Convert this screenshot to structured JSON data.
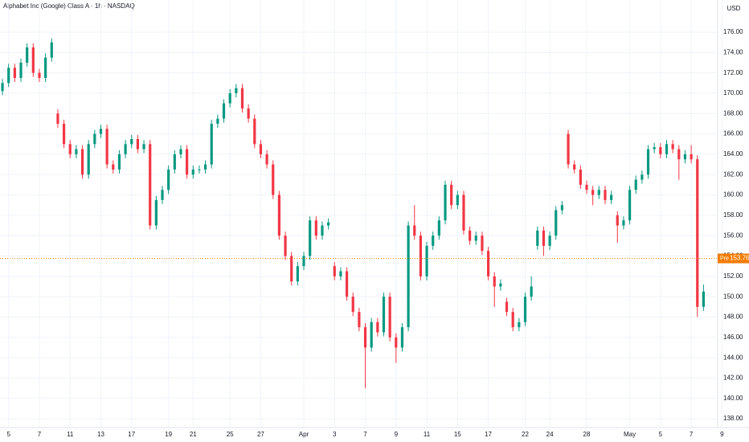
{
  "chart_data": {
    "type": "candlestick",
    "title": "Alphabet Inc (Google) Class A · 1h · NASDAQ",
    "currency": "USD",
    "up_color": "#089981",
    "down_color": "#f23645",
    "last_price": {
      "value": 153.76,
      "label": "153.76",
      "tag": "Pre",
      "color": "#f57c00"
    },
    "xlim": [
      -0.4,
      116.3
    ],
    "ylim": [
      137.14,
      179.16
    ],
    "yticks": [
      {
        "value": 138,
        "label": "138.00"
      },
      {
        "value": 140,
        "label": "140.00"
      },
      {
        "value": 142,
        "label": "142.00"
      },
      {
        "value": 144,
        "label": "144.00"
      },
      {
        "value": 146,
        "label": "146.00"
      },
      {
        "value": 148,
        "label": "148.00"
      },
      {
        "value": 150,
        "label": "150.00"
      },
      {
        "value": 152,
        "label": "152.00"
      },
      {
        "value": 154,
        "label": "154.00"
      },
      {
        "value": 156,
        "label": "156.00"
      },
      {
        "value": 158,
        "label": "158.00"
      },
      {
        "value": 160,
        "label": "160.00"
      },
      {
        "value": 162,
        "label": "162.00"
      },
      {
        "value": 164,
        "label": "164.00"
      },
      {
        "value": 166,
        "label": "166.00"
      },
      {
        "value": 168,
        "label": "168.00"
      },
      {
        "value": 170,
        "label": "170.00"
      },
      {
        "value": 172,
        "label": "172.00"
      },
      {
        "value": 174,
        "label": "174.00"
      },
      {
        "value": 176,
        "label": "176.00"
      }
    ],
    "xticks": [
      {
        "value": 1,
        "label": "5"
      },
      {
        "value": 6,
        "label": "7"
      },
      {
        "value": 11,
        "label": "11"
      },
      {
        "value": 16,
        "label": "13"
      },
      {
        "value": 21,
        "label": "17"
      },
      {
        "value": 27,
        "label": "19"
      },
      {
        "value": 31,
        "label": "21"
      },
      {
        "value": 37,
        "label": "25"
      },
      {
        "value": 42,
        "label": "27"
      },
      {
        "value": 49,
        "label": "Apr"
      },
      {
        "value": 54,
        "label": "3"
      },
      {
        "value": 59,
        "label": "7"
      },
      {
        "value": 64,
        "label": "9"
      },
      {
        "value": 69,
        "label": "11"
      },
      {
        "value": 74,
        "label": "15"
      },
      {
        "value": 79,
        "label": "17"
      },
      {
        "value": 85,
        "label": "22"
      },
      {
        "value": 89,
        "label": "24"
      },
      {
        "value": 95,
        "label": "28"
      },
      {
        "value": 102,
        "label": "May"
      },
      {
        "value": 107,
        "label": "5"
      },
      {
        "value": 112,
        "label": "7"
      },
      {
        "value": 117,
        "label": "9"
      }
    ],
    "open": [
      170.2,
      171.0,
      172.5,
      171.5,
      173.0,
      174.5,
      172.0,
      171.5,
      173.5,
      168.0,
      167.0,
      165.0,
      164.0,
      164.5,
      162.0,
      165.0,
      166.0,
      166.5,
      163.0,
      162.5,
      164.0,
      165.0,
      165.5,
      164.5,
      165.0,
      157.0,
      159.5,
      160.5,
      162.5,
      164.0,
      164.5,
      162.0,
      162.5,
      162.5,
      163.0,
      167.0,
      167.5,
      169.0,
      170.0,
      170.5,
      168.5,
      167.5,
      165.0,
      164.0,
      163.0,
      160.0,
      156.0,
      154.0,
      151.5,
      153.0,
      154.0,
      157.5,
      156.0,
      157.0,
      153.0,
      152.0,
      152.5,
      150.0,
      148.5,
      147.0,
      145.0,
      147.5,
      146.5,
      150.0,
      146.0,
      145.0,
      147.0,
      157.0,
      156.0,
      152.0,
      155.0,
      156.0,
      157.5,
      161.0,
      159.0,
      160.0,
      156.5,
      155.5,
      156.0,
      154.5,
      152.0,
      151.0,
      149.5,
      148.5,
      147.0,
      147.5,
      150.0,
      155.0,
      156.5,
      155.0,
      156.0,
      158.5,
      166.0,
      163.0,
      162.5,
      161.0,
      160.5,
      160.0,
      160.5,
      159.5,
      158.0,
      157.0,
      157.5,
      160.5,
      161.5,
      162.0,
      164.5,
      164.7,
      164.0,
      165.0,
      164.5,
      163.5,
      164.0,
      163.5,
      149.0
    ],
    "high": [
      171.4,
      172.9,
      172.9,
      173.4,
      174.9,
      174.9,
      172.4,
      173.9,
      175.4,
      168.4,
      167.4,
      165.4,
      164.9,
      164.9,
      165.4,
      166.4,
      166.9,
      166.9,
      163.4,
      164.4,
      165.4,
      165.9,
      165.9,
      165.4,
      165.4,
      159.9,
      160.9,
      162.9,
      164.4,
      164.9,
      164.9,
      162.9,
      162.9,
      163.4,
      167.4,
      167.9,
      169.4,
      170.4,
      170.9,
      170.9,
      168.9,
      167.9,
      165.4,
      164.4,
      163.4,
      160.4,
      156.4,
      154.4,
      153.4,
      154.4,
      157.9,
      157.9,
      157.4,
      157.7,
      153.4,
      152.9,
      152.9,
      150.4,
      148.9,
      147.4,
      147.9,
      147.9,
      150.4,
      150.4,
      146.4,
      147.4,
      157.4,
      159.0,
      156.4,
      155.4,
      156.4,
      157.9,
      161.4,
      161.4,
      160.4,
      160.4,
      156.9,
      156.4,
      156.4,
      154.9,
      152.4,
      151.7,
      149.9,
      148.9,
      147.9,
      150.4,
      152.0,
      156.9,
      156.9,
      156.4,
      158.9,
      159.4,
      166.4,
      163.4,
      162.9,
      161.4,
      160.9,
      160.9,
      160.9,
      160.4,
      158.4,
      157.9,
      160.9,
      161.9,
      162.4,
      164.9,
      165.1,
      165.1,
      165.4,
      165.4,
      164.9,
      164.4,
      164.9,
      163.9,
      151.2
    ],
    "low": [
      169.8,
      170.6,
      171.1,
      171.1,
      172.6,
      171.6,
      171.1,
      171.1,
      173.1,
      166.6,
      164.6,
      163.6,
      163.6,
      161.6,
      161.6,
      164.6,
      165.6,
      162.6,
      162.1,
      162.1,
      163.6,
      164.6,
      164.1,
      164.1,
      156.6,
      156.6,
      159.1,
      160.1,
      162.1,
      163.6,
      161.6,
      161.6,
      162.1,
      162.1,
      162.6,
      166.6,
      167.1,
      168.6,
      169.6,
      168.1,
      167.1,
      164.6,
      163.6,
      162.6,
      159.6,
      155.6,
      153.6,
      151.1,
      151.1,
      152.6,
      153.6,
      155.6,
      155.6,
      156.6,
      151.6,
      151.6,
      149.6,
      148.1,
      146.6,
      141.0,
      144.6,
      146.1,
      146.1,
      145.6,
      143.5,
      144.6,
      146.6,
      155.6,
      151.6,
      151.6,
      154.6,
      155.6,
      157.1,
      158.6,
      158.6,
      156.1,
      155.1,
      155.1,
      154.1,
      151.6,
      149.0,
      150.6,
      148.1,
      146.6,
      146.6,
      147.1,
      149.6,
      154.6,
      154.0,
      154.6,
      155.6,
      158.1,
      162.6,
      162.1,
      160.6,
      160.1,
      159.0,
      159.6,
      159.1,
      159.1,
      155.3,
      156.6,
      157.1,
      160.1,
      161.1,
      161.6,
      164.1,
      163.6,
      163.6,
      164.1,
      161.5,
      163.1,
      163.1,
      148.0,
      148.6
    ],
    "close": [
      171.0,
      172.5,
      171.5,
      173.0,
      174.5,
      172.0,
      171.5,
      173.5,
      175.0,
      167.0,
      165.0,
      164.0,
      164.5,
      162.0,
      165.0,
      166.0,
      166.5,
      163.0,
      162.5,
      164.0,
      165.0,
      165.5,
      164.5,
      165.0,
      157.0,
      159.5,
      160.5,
      162.5,
      164.0,
      164.5,
      162.0,
      162.5,
      162.5,
      163.0,
      167.0,
      167.5,
      169.0,
      170.0,
      170.5,
      168.5,
      167.5,
      165.0,
      164.0,
      163.0,
      160.0,
      156.0,
      154.0,
      151.5,
      153.0,
      154.0,
      157.5,
      156.0,
      157.0,
      157.3,
      152.0,
      152.5,
      150.0,
      148.5,
      147.0,
      145.0,
      147.5,
      146.5,
      150.0,
      146.0,
      145.0,
      147.0,
      157.0,
      156.0,
      152.0,
      155.0,
      156.0,
      157.5,
      161.0,
      159.0,
      160.0,
      156.5,
      155.5,
      156.0,
      154.5,
      152.0,
      151.0,
      151.3,
      148.5,
      147.0,
      147.5,
      150.0,
      151.0,
      156.5,
      155.0,
      156.0,
      158.5,
      159.0,
      163.0,
      162.5,
      161.0,
      160.5,
      160.0,
      160.5,
      159.5,
      160.0,
      157.0,
      157.5,
      160.5,
      161.5,
      162.0,
      164.5,
      164.7,
      164.0,
      165.0,
      164.5,
      163.5,
      164.0,
      163.5,
      149.0,
      150.5
    ],
    "grid": true
  }
}
